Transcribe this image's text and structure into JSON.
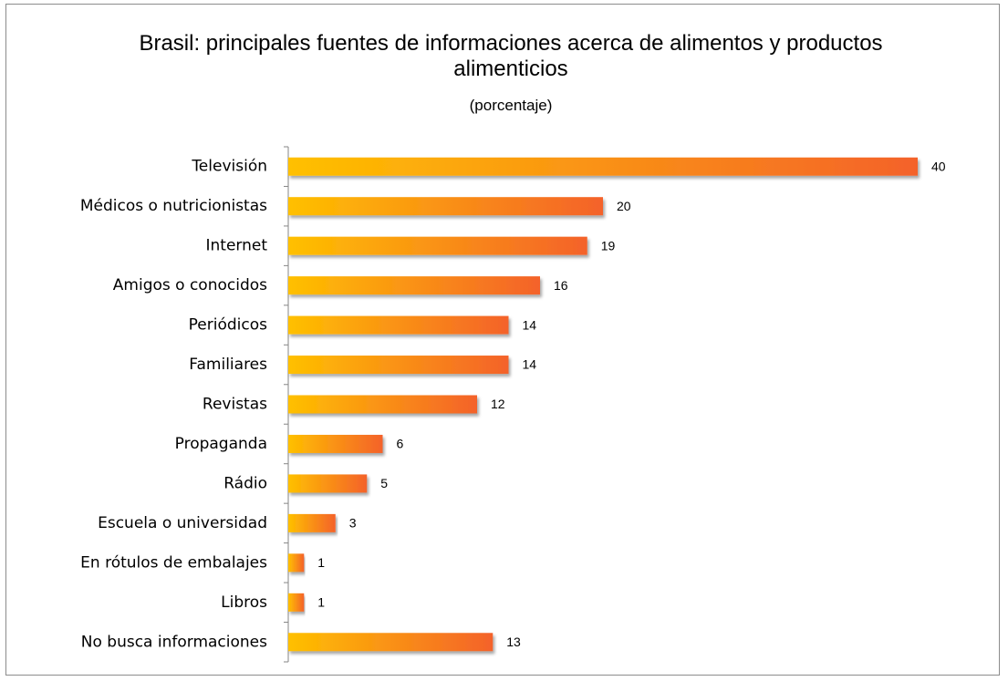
{
  "chart_data": {
    "type": "bar",
    "orientation": "horizontal",
    "title": "Brasil: principales fuentes de informaciones acerca de alimentos y productos alimenticios",
    "subtitle": "(porcentaje)",
    "categories": [
      "Televisión",
      "Médicos o nutricionistas",
      "Internet",
      "Amigos o conocidos",
      "Periódicos",
      "Familiares",
      "Revistas",
      "Propaganda",
      "Rádio",
      "Escuela o universidad",
      "En rótulos de embalajes",
      "Libros",
      "No busca informaciones"
    ],
    "values": [
      40,
      20,
      19,
      16,
      14,
      14,
      12,
      6,
      5,
      3,
      1,
      1,
      13
    ],
    "color": [
      "#ffc000",
      "#f4622a"
    ]
  }
}
